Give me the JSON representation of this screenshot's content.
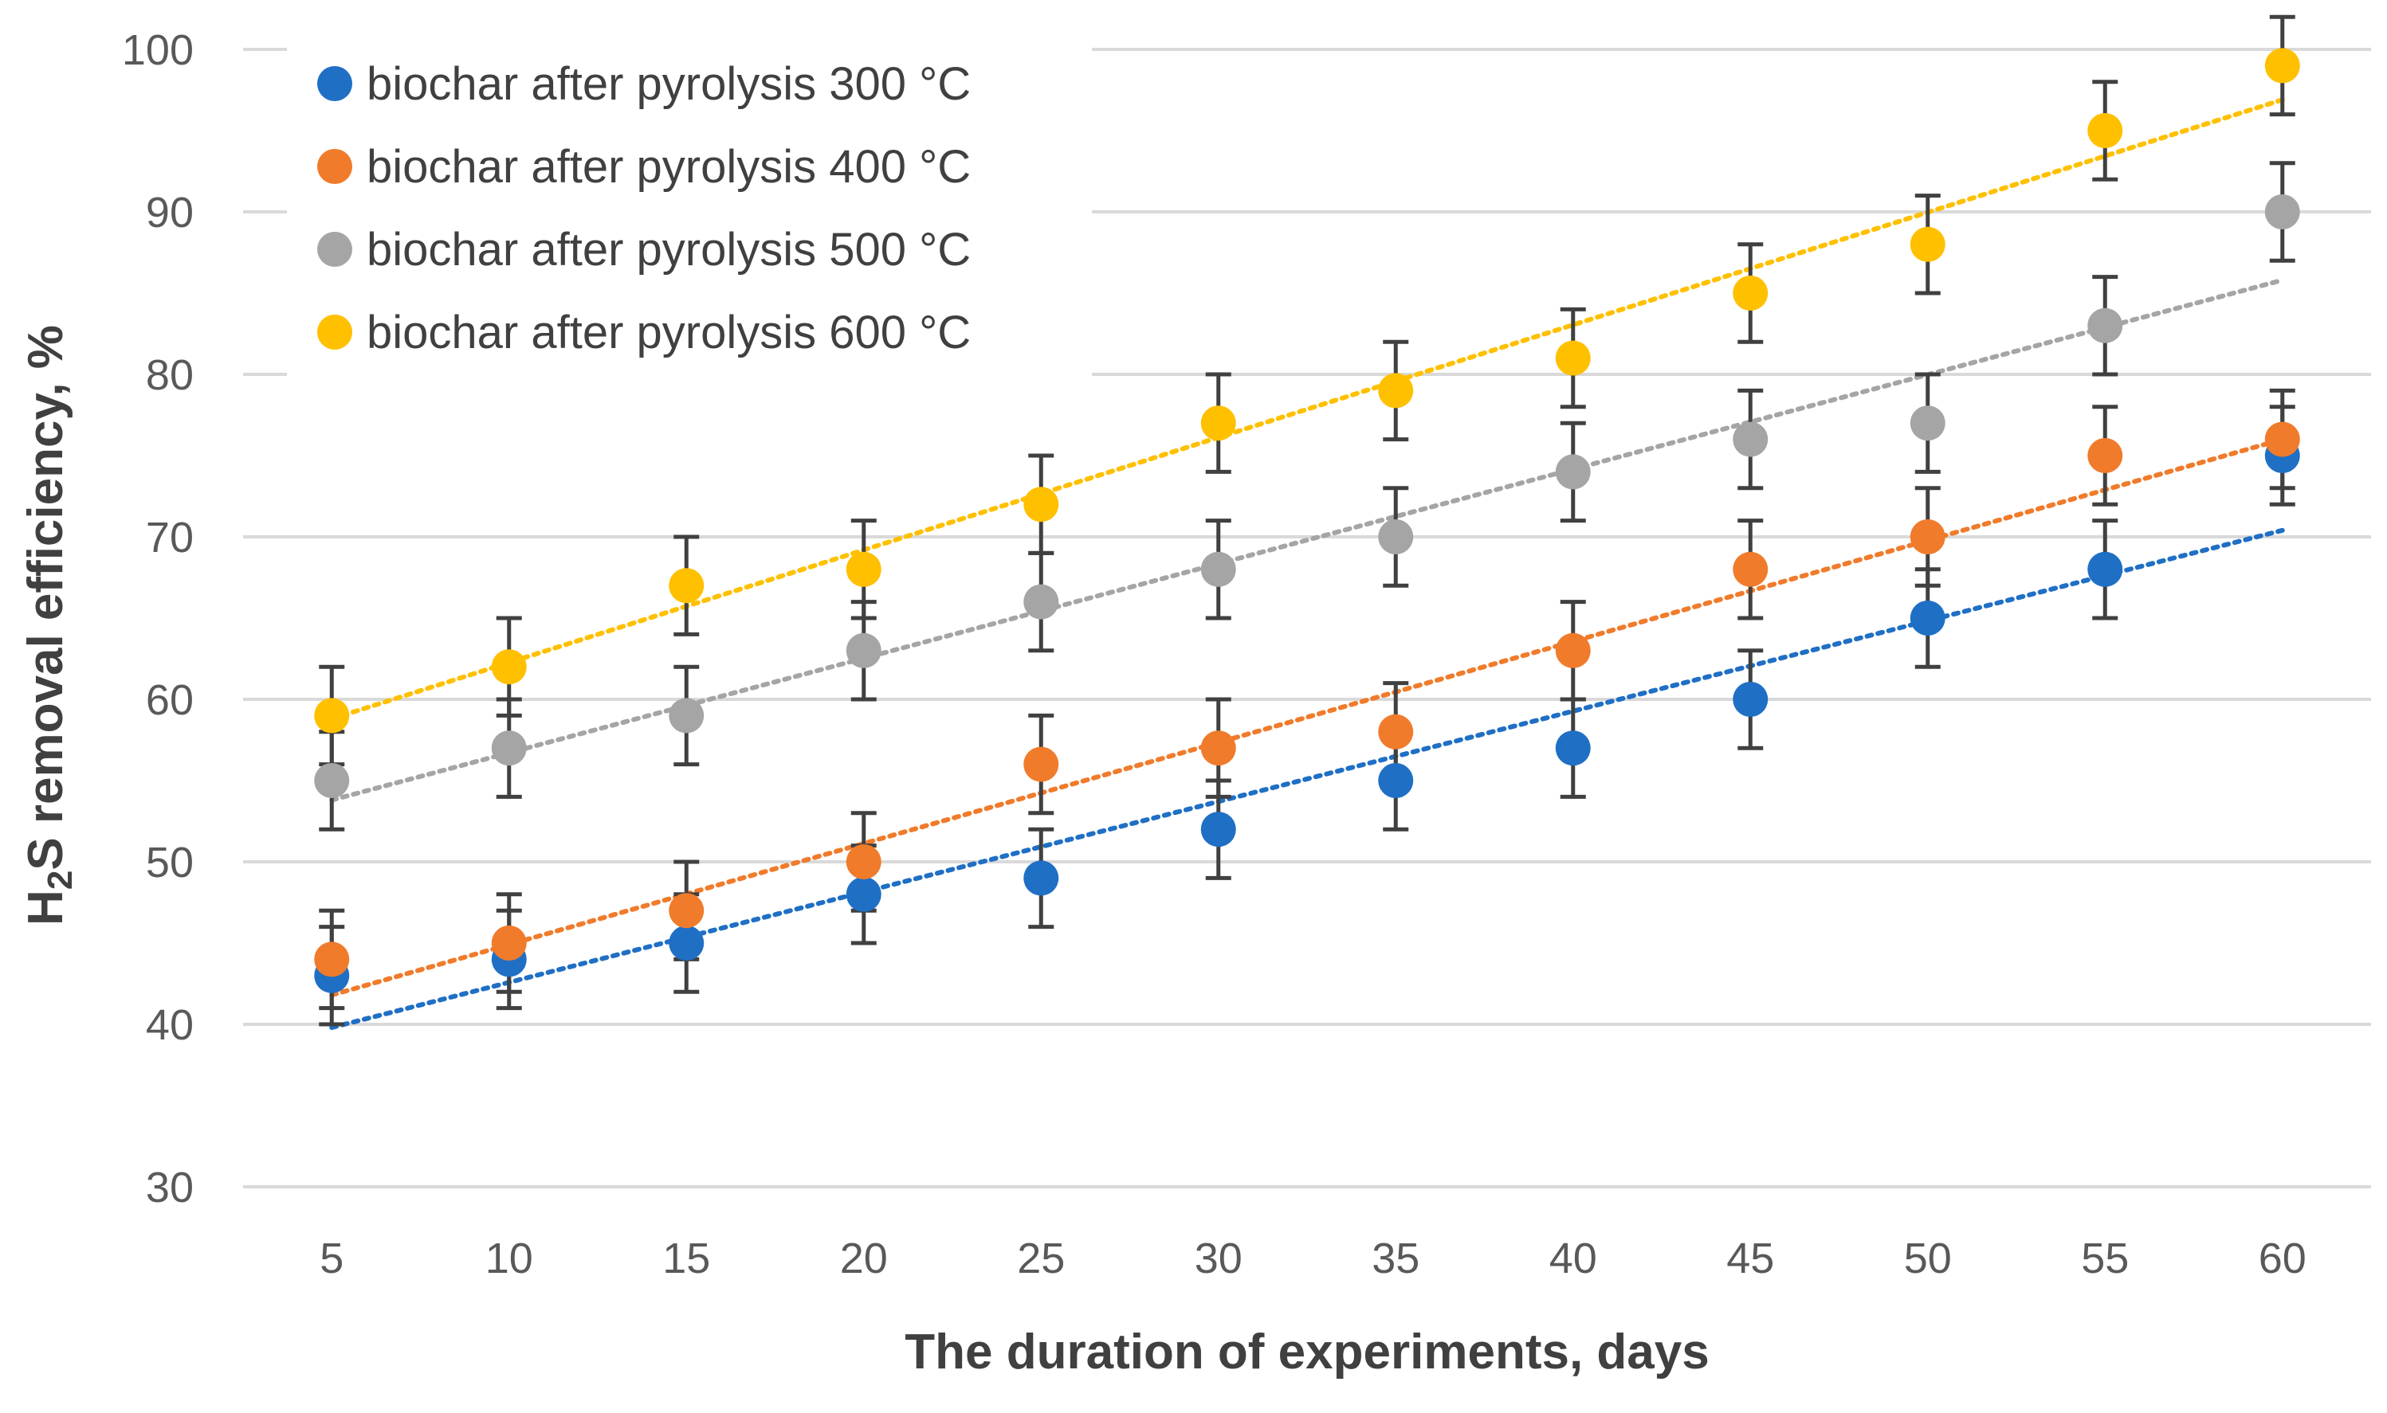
{
  "chart_data": {
    "type": "scatter",
    "title": "",
    "xlabel": "The duration of experiments, days",
    "ylabel": "H2S removal efficiency, %",
    "ylabel_parts": {
      "pre": "H",
      "sub": "2",
      "post": "S removal efficiency, %"
    },
    "x": [
      5,
      10,
      15,
      20,
      25,
      30,
      35,
      40,
      45,
      50,
      55,
      60
    ],
    "xticks": [
      "5",
      "10",
      "15",
      "20",
      "25",
      "30",
      "35",
      "40",
      "45",
      "50",
      "55",
      "60"
    ],
    "ylim": [
      30,
      100
    ],
    "yticks": [
      "30",
      "40",
      "50",
      "60",
      "70",
      "80",
      "90",
      "100"
    ],
    "grid": true,
    "legend_position": "top-left",
    "error_bar": 3,
    "series": [
      {
        "name": "biochar after pyrolysis 300 °C",
        "color": "#1f6fc5",
        "values": [
          43,
          44,
          45,
          48,
          49,
          52,
          55,
          57,
          60,
          65,
          68,
          75
        ],
        "trend": [
          39.8,
          70.4
        ]
      },
      {
        "name": "biochar after pyrolysis 400 °C",
        "color": "#f07b2b",
        "values": [
          44,
          45,
          47,
          50,
          56,
          57,
          58,
          63,
          68,
          70,
          75,
          76
        ],
        "trend": [
          41.8,
          76.0
        ]
      },
      {
        "name": "biochar after pyrolysis 500 °C",
        "color": "#a5a5a5",
        "values": [
          55,
          57,
          59,
          63,
          66,
          68,
          70,
          74,
          76,
          77,
          83,
          90
        ],
        "trend": [
          53.8,
          85.8
        ]
      },
      {
        "name": "biochar after pyrolysis 600 °C",
        "color": "#ffc000",
        "values": [
          59,
          62,
          67,
          68,
          72,
          77,
          79,
          81,
          85,
          88,
          95,
          99
        ],
        "trend": [
          58.8,
          96.9
        ]
      }
    ]
  }
}
